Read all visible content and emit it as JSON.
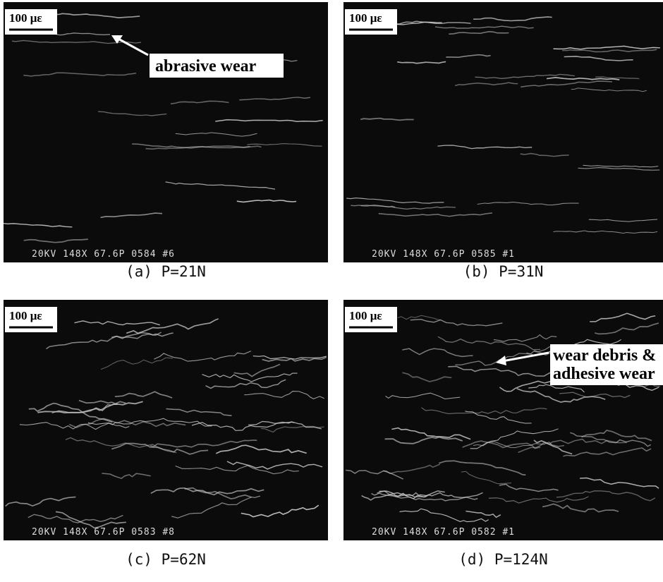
{
  "panels": [
    {
      "scale_label": "100 με",
      "footer": "20KV 148X 67.6P 0584 #6",
      "caption": "(a) P=21N",
      "annotation": [
        "abrasive wear"
      ]
    },
    {
      "scale_label": "100 με",
      "footer": "20KV 148X 67.6P 0585 #1",
      "caption": "(b) P=31N",
      "annotation": []
    },
    {
      "scale_label": "100 με",
      "footer": "20KV 148X 67.6P 0583 #8",
      "caption": "(c) P=62N",
      "annotation": []
    },
    {
      "scale_label": "100 με",
      "footer": "20KV 148X 67.6P 0582 #1",
      "caption": "(d) P=124N",
      "annotation": [
        "wear debris &",
        "adhesive wear"
      ]
    }
  ]
}
